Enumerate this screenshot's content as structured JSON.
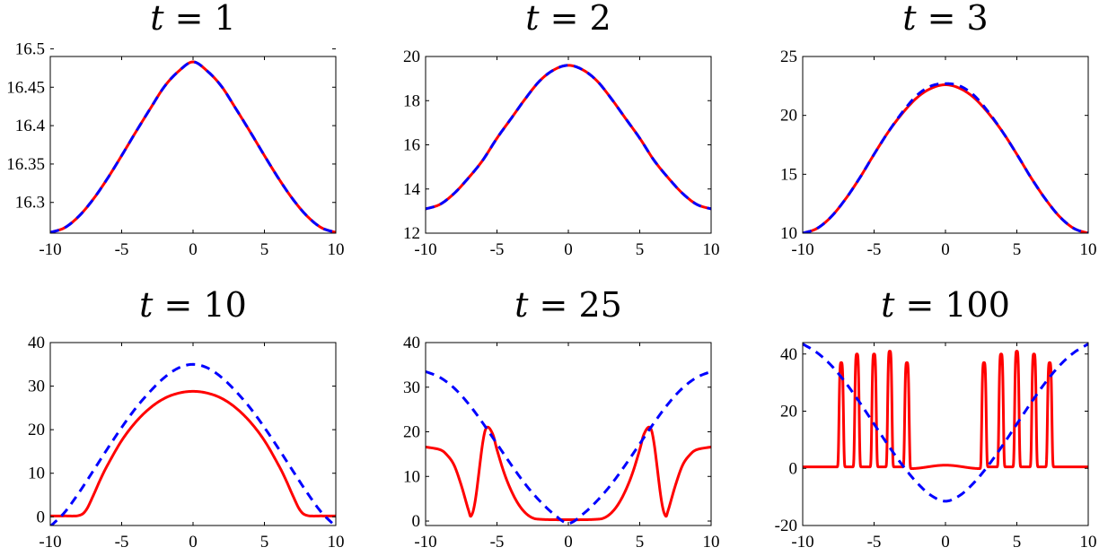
{
  "chart_data": [
    {
      "type": "line",
      "title_var": "t",
      "title_value": "1",
      "xlim": [
        -10,
        10
      ],
      "ylim": [
        16.26,
        16.49
      ],
      "xticks": [
        "-10",
        "-5",
        "0",
        "5",
        "10"
      ],
      "yticks": [
        "16.3",
        "16.35",
        "16.4",
        "16.45",
        "16.5"
      ],
      "series": [
        {
          "color": "#ff0000",
          "style": "solid",
          "x": [
            -10,
            -9,
            -8,
            -7,
            -6,
            -5,
            -4,
            -3,
            -2,
            -1,
            0,
            1,
            2,
            3,
            4,
            5,
            6,
            7,
            8,
            9,
            10
          ],
          "y": [
            16.261,
            16.267,
            16.282,
            16.304,
            16.331,
            16.361,
            16.392,
            16.422,
            16.451,
            16.471,
            16.483,
            16.471,
            16.451,
            16.422,
            16.392,
            16.361,
            16.331,
            16.304,
            16.282,
            16.267,
            16.261
          ]
        },
        {
          "color": "#0000ff",
          "style": "dashed",
          "x": [
            -10,
            -9,
            -8,
            -7,
            -6,
            -5,
            -4,
            -3,
            -2,
            -1,
            0,
            1,
            2,
            3,
            4,
            5,
            6,
            7,
            8,
            9,
            10
          ],
          "y": [
            16.261,
            16.267,
            16.282,
            16.304,
            16.331,
            16.361,
            16.392,
            16.422,
            16.451,
            16.471,
            16.483,
            16.471,
            16.451,
            16.422,
            16.392,
            16.361,
            16.331,
            16.304,
            16.282,
            16.267,
            16.261
          ]
        }
      ]
    },
    {
      "type": "line",
      "title_var": "t",
      "title_value": "2",
      "xlim": [
        -10,
        10
      ],
      "ylim": [
        12,
        20
      ],
      "xticks": [
        "-10",
        "-5",
        "0",
        "5",
        "10"
      ],
      "yticks": [
        "12",
        "14",
        "16",
        "18",
        "20"
      ],
      "series": [
        {
          "color": "#ff0000",
          "style": "solid",
          "x": [
            -10,
            -9,
            -8,
            -7,
            -6,
            -5,
            -4,
            -3,
            -2,
            -1,
            0,
            1,
            2,
            3,
            4,
            5,
            6,
            7,
            8,
            9,
            10
          ],
          "y": [
            13.1,
            13.3,
            13.8,
            14.5,
            15.3,
            16.3,
            17.2,
            18.1,
            18.9,
            19.4,
            19.6,
            19.4,
            18.9,
            18.1,
            17.2,
            16.3,
            15.3,
            14.5,
            13.8,
            13.3,
            13.1
          ]
        },
        {
          "color": "#0000ff",
          "style": "dashed",
          "x": [
            -10,
            -9,
            -8,
            -7,
            -6,
            -5,
            -4,
            -3,
            -2,
            -1,
            0,
            1,
            2,
            3,
            4,
            5,
            6,
            7,
            8,
            9,
            10
          ],
          "y": [
            13.1,
            13.3,
            13.8,
            14.5,
            15.3,
            16.3,
            17.2,
            18.1,
            18.9,
            19.4,
            19.6,
            19.4,
            18.9,
            18.1,
            17.2,
            16.3,
            15.3,
            14.5,
            13.8,
            13.3,
            13.1
          ]
        }
      ]
    },
    {
      "type": "line",
      "title_var": "t",
      "title_value": "3",
      "xlim": [
        -10,
        10
      ],
      "ylim": [
        10,
        25
      ],
      "xticks": [
        "-10",
        "-5",
        "0",
        "5",
        "10"
      ],
      "yticks": [
        "10",
        "15",
        "20",
        "25"
      ],
      "series": [
        {
          "color": "#ff0000",
          "style": "solid",
          "x": [
            -10,
            -9,
            -8,
            -7,
            -6,
            -5,
            -4,
            -3,
            -2,
            -1,
            0,
            1,
            2,
            3,
            4,
            5,
            6,
            7,
            8,
            9,
            10
          ],
          "y": [
            10.0,
            10.4,
            11.4,
            12.9,
            14.7,
            16.7,
            18.6,
            20.2,
            21.5,
            22.3,
            22.6,
            22.3,
            21.5,
            20.2,
            18.6,
            16.7,
            14.7,
            12.9,
            11.4,
            10.4,
            10.0
          ]
        },
        {
          "color": "#0000ff",
          "style": "dashed",
          "x": [
            -10,
            -9,
            -8,
            -7,
            -6,
            -5,
            -4,
            -3,
            -2,
            -1,
            0,
            1,
            2,
            3,
            4,
            5,
            6,
            7,
            8,
            9,
            10
          ],
          "y": [
            10.0,
            10.4,
            11.4,
            12.9,
            14.7,
            16.7,
            18.6,
            20.3,
            21.7,
            22.5,
            22.7,
            22.5,
            21.7,
            20.3,
            18.6,
            16.7,
            14.7,
            12.9,
            11.4,
            10.4,
            10.0
          ]
        }
      ]
    },
    {
      "type": "line",
      "title_var": "t",
      "title_value": "10",
      "xlim": [
        -10,
        10
      ],
      "ylim": [
        -2,
        40
      ],
      "xticks": [
        "-10",
        "-5",
        "0",
        "5",
        "10"
      ],
      "yticks": [
        "0",
        "10",
        "20",
        "30",
        "40"
      ],
      "series": [
        {
          "color": "#ff0000",
          "style": "solid",
          "x": [
            -10,
            -9,
            -8,
            -7.5,
            -7,
            -6.5,
            -6,
            -5,
            -4,
            -3,
            -2,
            -1,
            0,
            1,
            2,
            3,
            4,
            5,
            6,
            6.5,
            7,
            7.5,
            8,
            9,
            10
          ],
          "y": [
            0.2,
            0.2,
            0.3,
            1.5,
            4.8,
            8.5,
            11.8,
            17.5,
            21.8,
            25.0,
            27.2,
            28.4,
            28.8,
            28.4,
            27.2,
            25.0,
            21.8,
            17.5,
            11.8,
            8.5,
            4.8,
            1.5,
            0.3,
            0.2,
            0.2
          ]
        },
        {
          "color": "#0000ff",
          "style": "dashed",
          "x": [
            -10,
            -9,
            -8,
            -7,
            -6,
            -5,
            -4,
            -3,
            -2,
            -1,
            0,
            1,
            2,
            3,
            4,
            5,
            6,
            7,
            8,
            9,
            10
          ],
          "y": [
            -2.2,
            1.0,
            5.5,
            10.5,
            15.6,
            20.5,
            25.0,
            28.8,
            32.0,
            34.2,
            35.0,
            34.2,
            32.0,
            28.8,
            25.0,
            20.5,
            15.6,
            10.5,
            5.5,
            1.0,
            -2.2
          ]
        }
      ]
    },
    {
      "type": "line",
      "title_var": "t",
      "title_value": "25",
      "xlim": [
        -10,
        10
      ],
      "ylim": [
        -1,
        40
      ],
      "xticks": [
        "-10",
        "-5",
        "0",
        "5",
        "10"
      ],
      "yticks": [
        "0",
        "10",
        "20",
        "30",
        "40"
      ],
      "series": [
        {
          "color": "#ff0000",
          "style": "solid",
          "x": [
            -10,
            -9,
            -8.5,
            -8,
            -7.5,
            -7,
            -6.8,
            -6.5,
            -6,
            -5.7,
            -5.3,
            -5,
            -4.5,
            -4,
            -3.5,
            -3,
            -2.5,
            -2,
            -1,
            0,
            1,
            2,
            2.5,
            3,
            3.5,
            4,
            4.5,
            5,
            5.3,
            5.7,
            6,
            6.5,
            6.8,
            7,
            7.5,
            8,
            8.5,
            9,
            10
          ],
          "y": [
            16.6,
            16.0,
            14.8,
            12.5,
            8.0,
            2.5,
            1.2,
            5.0,
            17.5,
            21.0,
            19.5,
            16.0,
            10.8,
            6.8,
            3.8,
            1.8,
            0.7,
            0.4,
            0.3,
            0.3,
            0.3,
            0.4,
            0.7,
            1.8,
            3.8,
            6.8,
            10.8,
            16.0,
            19.5,
            21.0,
            17.5,
            5.0,
            1.2,
            2.5,
            8.0,
            12.5,
            14.8,
            16.0,
            16.6
          ]
        },
        {
          "color": "#0000ff",
          "style": "dashed",
          "x": [
            -10,
            -9,
            -8,
            -7,
            -6,
            -5,
            -4,
            -3,
            -2,
            -1,
            0,
            1,
            2,
            3,
            4,
            5,
            6,
            7,
            8,
            9,
            10
          ],
          "y": [
            33.5,
            32.2,
            29.8,
            26.3,
            22.0,
            17.3,
            12.6,
            8.2,
            4.5,
            1.5,
            -0.5,
            1.5,
            4.5,
            8.2,
            12.6,
            17.3,
            22.0,
            26.3,
            29.8,
            32.2,
            33.5
          ]
        }
      ]
    },
    {
      "type": "line",
      "title_var": "t",
      "title_value": "100",
      "xlim": [
        -10,
        10
      ],
      "ylim": [
        -20,
        44
      ],
      "xticks": [
        "-10",
        "-5",
        "0",
        "5",
        "10"
      ],
      "yticks": [
        "-20",
        "0",
        "20",
        "40"
      ],
      "series": [
        {
          "color": "#ff0000",
          "style": "solid",
          "peaks": [
            -7.3,
            -6.2,
            -5.0,
            -3.9,
            -2.7,
            2.7,
            3.9,
            5.0,
            6.2,
            7.3
          ],
          "peak_heights": [
            37,
            40,
            40,
            41,
            37,
            37,
            40,
            41,
            40,
            37
          ],
          "baseline": 0.5
        },
        {
          "color": "#0000ff",
          "style": "dashed",
          "x": [
            -10,
            -9,
            -8,
            -7,
            -6,
            -5,
            -4,
            -3,
            -2,
            -1,
            0,
            1,
            2,
            3,
            4,
            5,
            6,
            7,
            8,
            9,
            10
          ],
          "y": [
            43.5,
            40.5,
            36.0,
            30.0,
            23.0,
            15.5,
            8.0,
            1.0,
            -5.0,
            -9.5,
            -11.5,
            -9.5,
            -5.0,
            1.0,
            8.0,
            15.5,
            23.0,
            30.0,
            36.0,
            40.5,
            43.5
          ]
        }
      ]
    }
  ]
}
